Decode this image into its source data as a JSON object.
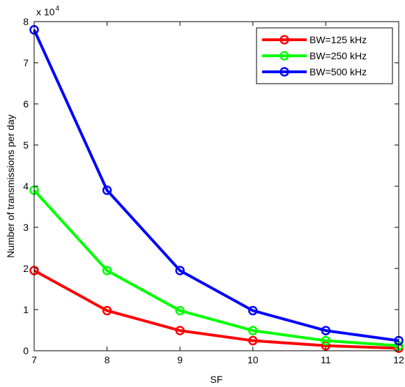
{
  "chart_data": {
    "type": "line",
    "xlabel": "SF",
    "ylabel": "Number of transmissions per day",
    "y_multiplier_label": "x 10",
    "y_multiplier_exponent": "4",
    "x": [
      7,
      8,
      9,
      10,
      11,
      12
    ],
    "xlim": [
      7,
      12
    ],
    "ylim": [
      0,
      80000
    ],
    "x_ticks": [
      "7",
      "8",
      "9",
      "10",
      "11",
      "12"
    ],
    "y_ticks": [
      "0",
      "1",
      "2",
      "3",
      "4",
      "5",
      "6",
      "7",
      "8"
    ],
    "y_tick_values": [
      0,
      10000,
      20000,
      30000,
      40000,
      50000,
      60000,
      70000,
      80000
    ],
    "grid": false,
    "legend_position": "top-right",
    "series": [
      {
        "name": "BW=125 kHz",
        "color": "#ff0000",
        "values": [
          19500,
          9750,
          4900,
          2450,
          1220,
          610
        ]
      },
      {
        "name": "BW=250 kHz",
        "color": "#00ff00",
        "values": [
          39000,
          19500,
          9750,
          4900,
          2450,
          1220
        ]
      },
      {
        "name": "BW=500 kHz",
        "color": "#0000ff",
        "values": [
          78000,
          39000,
          19500,
          9750,
          4900,
          2450
        ]
      }
    ]
  }
}
